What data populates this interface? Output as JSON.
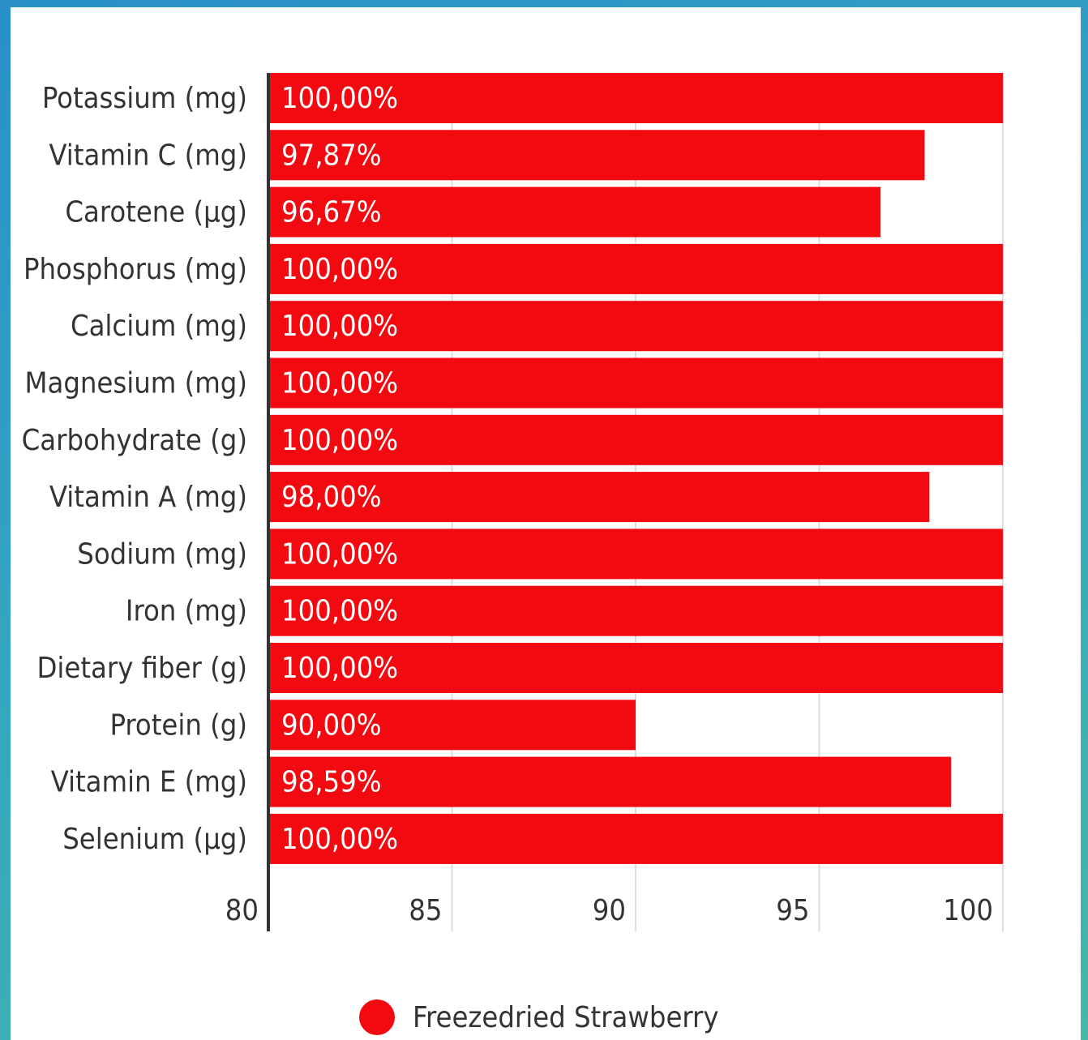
{
  "chart_data": {
    "type": "bar",
    "orientation": "horizontal",
    "categories": [
      "Potassium (mg)",
      "Vitamin C (mg)",
      "Carotene (µg)",
      "Phosphorus (mg)",
      "Calcium (mg)",
      "Magnesium (mg)",
      "Carbohydrate (g)",
      "Vitamin A (mg)",
      "Sodium (mg)",
      "Iron (mg)",
      "Dietary fiber (g)",
      "Protein (g)",
      "Vitamin E (mg)",
      "Selenium (µg)"
    ],
    "series": [
      {
        "name": "Freezedried Strawberry",
        "color": "#f20a10",
        "values": [
          100,
          97.87,
          96.67,
          100,
          100,
          100,
          100,
          98,
          100,
          100,
          100,
          90,
          98.59,
          100
        ],
        "labels": [
          "100,00%",
          "97,87%",
          "96,67%",
          "100,00%",
          "100,00%",
          "100,00%",
          "100,00%",
          "98,00%",
          "100,00%",
          "100,00%",
          "100,00%",
          "90,00%",
          "98,59%",
          "100,00%"
        ]
      }
    ],
    "xlim": [
      80,
      100
    ],
    "xticks": [
      80,
      85,
      90,
      95,
      100
    ],
    "xtick_labels": [
      "80",
      "85",
      "90",
      "95",
      "100"
    ],
    "grid": true,
    "legend_position": "bottom-center",
    "title": "",
    "xlabel": "",
    "ylabel": ""
  },
  "legend": {
    "label": "Freezedried Strawberry",
    "color": "#f20a10"
  }
}
